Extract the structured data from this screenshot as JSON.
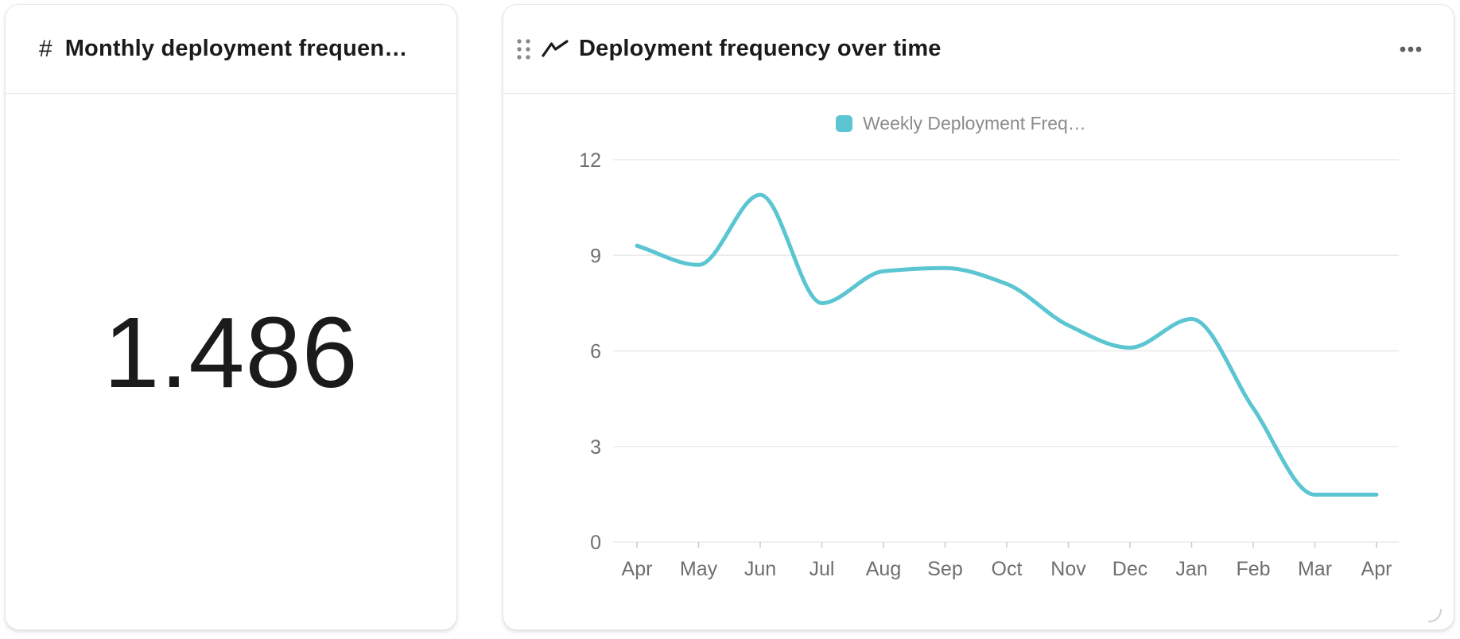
{
  "stat_card": {
    "icon": "#",
    "title": "Monthly deployment frequen…",
    "value": "1.486"
  },
  "chart_card": {
    "title": "Deployment frequency over time"
  },
  "icons": {
    "stat_header": "hash-icon",
    "chart_header": "line-chart-icon",
    "drag": "drag-handle-icon",
    "more": "more-options-icon",
    "resize": "resize-handle-icon"
  },
  "chart_data": {
    "type": "line",
    "title": "Deployment frequency over time",
    "legend": [
      "Weekly Deployment Freq…"
    ],
    "legend_position": "top-center",
    "x": [
      "Apr",
      "May",
      "Jun",
      "Jul",
      "Aug",
      "Sep",
      "Oct",
      "Nov",
      "Dec",
      "Jan",
      "Feb",
      "Mar",
      "Apr"
    ],
    "series": [
      {
        "name": "Weekly Deployment Freq…",
        "values": [
          9.3,
          8.7,
          10.9,
          7.5,
          8.5,
          8.6,
          8.1,
          6.8,
          6.1,
          7.0,
          4.2,
          1.486,
          1.486
        ],
        "color": "#5bc5d2"
      }
    ],
    "y_ticks": [
      0,
      3,
      6,
      9,
      12
    ],
    "ylim": [
      0,
      12
    ],
    "xlabel": "",
    "ylabel": "",
    "grid": "horizontal",
    "smooth": true
  },
  "colors": {
    "line": "#5bc5d2",
    "legend_swatch": "#5bc5d2",
    "legend_text": "#8c8c8c",
    "axis_label": "#6f6f6f",
    "grid_line": "#ebebeb",
    "tick_mark": "#c9c9c9",
    "icon_gray": "#8a8a8a",
    "more_dots": "#616161",
    "title_text": "#1b1b1b"
  }
}
